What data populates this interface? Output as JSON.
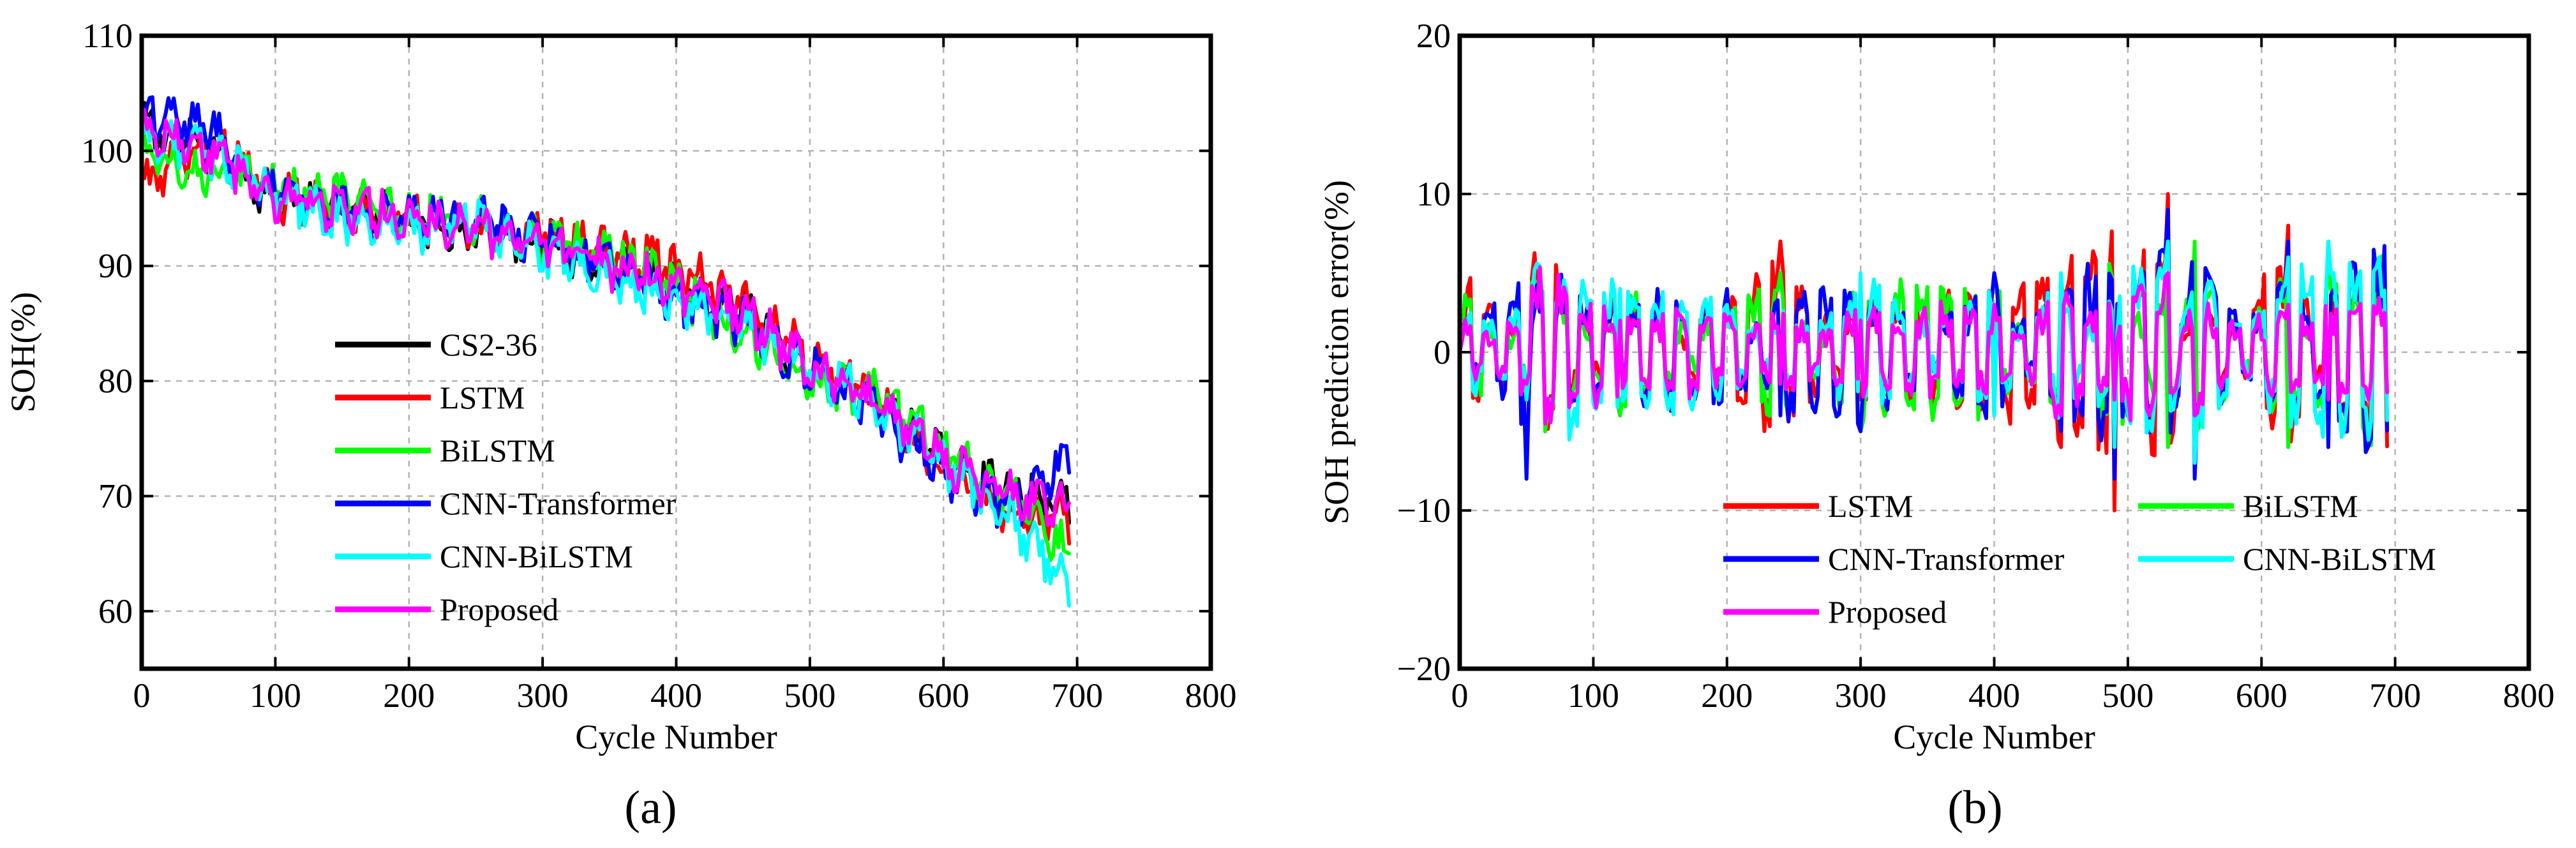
{
  "chart_data": [
    {
      "panel_label": "(a)",
      "type": "line",
      "xlabel": "Cycle Number",
      "ylabel": "SOH(%)",
      "xlim": [
        0,
        800
      ],
      "ylim": [
        55,
        110
      ],
      "xticks": [
        "0",
        "100",
        "200",
        "300",
        "400",
        "500",
        "600",
        "700",
        "800"
      ],
      "yticks": [
        "60",
        "70",
        "80",
        "90",
        "100",
        "110"
      ],
      "grid": true,
      "legend_position": "lower-left",
      "legend": [
        "CS2-36",
        "LSTM",
        "BiLSTM",
        "CNN-Transformer",
        "CNN-BiLSTM",
        "Proposed"
      ],
      "series": [
        {
          "name": "CS2-36",
          "color": "#000000",
          "x": [
            0,
            50,
            100,
            150,
            200,
            250,
            300,
            350,
            400,
            450,
            500,
            550,
            600,
            650,
            695
          ],
          "y": [
            102,
            100,
            96,
            95,
            94,
            93,
            92,
            90,
            88,
            86,
            81,
            78,
            73,
            70,
            69
          ]
        },
        {
          "name": "LSTM",
          "color": "#ff0000",
          "x": [
            0,
            50,
            100,
            150,
            200,
            250,
            300,
            350,
            400,
            450,
            500,
            550,
            600,
            650,
            695
          ],
          "y": [
            97,
            101,
            96,
            95,
            94,
            93,
            93,
            91,
            90,
            87,
            82,
            78,
            72,
            68,
            68
          ]
        },
        {
          "name": "BiLSTM",
          "color": "#00ff00",
          "x": [
            0,
            50,
            100,
            150,
            200,
            250,
            300,
            350,
            400,
            450,
            500,
            550,
            600,
            650,
            695
          ],
          "y": [
            100,
            98,
            97,
            96,
            94,
            94,
            92,
            91,
            88,
            84,
            80,
            79,
            74,
            70,
            65
          ]
        },
        {
          "name": "CNN-Transformer",
          "color": "#0000ff",
          "x": [
            0,
            50,
            100,
            150,
            200,
            250,
            300,
            350,
            400,
            450,
            500,
            550,
            600,
            650,
            695
          ],
          "y": [
            103,
            102,
            96,
            95,
            94,
            94,
            92,
            90,
            87,
            85,
            81,
            77,
            72,
            69,
            73
          ]
        },
        {
          "name": "CNN-BiLSTM",
          "color": "#00ffff",
          "x": [
            0,
            50,
            100,
            150,
            200,
            250,
            300,
            350,
            400,
            450,
            500,
            550,
            600,
            650,
            695
          ],
          "y": [
            101,
            100,
            96,
            94,
            93,
            94,
            91,
            89,
            87,
            85,
            81,
            78,
            73,
            68,
            62
          ]
        },
        {
          "name": "Proposed",
          "color": "#ff00ff",
          "x": [
            0,
            50,
            100,
            150,
            200,
            250,
            300,
            350,
            400,
            450,
            500,
            550,
            600,
            650,
            695
          ],
          "y": [
            102,
            100,
            96,
            95,
            94,
            93,
            92,
            90,
            88,
            86,
            81,
            78,
            73,
            70,
            69
          ]
        }
      ]
    },
    {
      "panel_label": "(b)",
      "type": "line",
      "xlabel": "Cycle Number",
      "ylabel": "SOH prediction error(%)",
      "xlim": [
        0,
        800
      ],
      "ylim": [
        -20,
        20
      ],
      "xticks": [
        "0",
        "100",
        "200",
        "300",
        "400",
        "500",
        "600",
        "700",
        "800"
      ],
      "yticks": [
        "−20",
        "−10",
        "0",
        "10",
        "20"
      ],
      "grid": true,
      "legend_position": "lower-left",
      "legend": [
        "LSTM",
        "BiLSTM",
        "CNN-Transformer",
        "CNN-BiLSTM",
        "Proposed"
      ],
      "series": [
        {
          "name": "LSTM",
          "color": "#ff0000",
          "x": [
            0,
            5,
            50,
            55,
            120,
            200,
            240,
            300,
            400,
            450,
            490,
            495,
            530,
            550,
            620,
            650,
            695
          ],
          "y": [
            0,
            6,
            -3,
            9,
            -4,
            3,
            7,
            -3,
            -4,
            -6,
            -10,
            5,
            10,
            -5,
            8,
            -4,
            -7
          ]
        },
        {
          "name": "BiLSTM",
          "color": "#00ff00",
          "x": [
            0,
            5,
            50,
            55,
            120,
            200,
            240,
            300,
            400,
            450,
            490,
            495,
            530,
            550,
            620,
            650,
            695
          ],
          "y": [
            0,
            4,
            -2,
            8,
            -4,
            2,
            5,
            -5,
            -4,
            5,
            -7,
            6,
            -6,
            7,
            -6,
            6,
            7
          ]
        },
        {
          "name": "CNN-Transformer",
          "color": "#0000ff",
          "x": [
            0,
            5,
            50,
            55,
            120,
            200,
            240,
            300,
            400,
            450,
            490,
            495,
            530,
            550,
            620,
            650,
            695
          ],
          "y": [
            0,
            2,
            -8,
            6,
            3,
            4,
            -4,
            -5,
            5,
            -5,
            -8,
            5,
            9,
            -8,
            7,
            -6,
            -8
          ]
        },
        {
          "name": "CNN-BiLSTM",
          "color": "#00ffff",
          "x": [
            0,
            5,
            50,
            55,
            120,
            200,
            240,
            300,
            400,
            450,
            490,
            495,
            530,
            550,
            620,
            650,
            695
          ],
          "y": [
            0,
            3,
            -3,
            7,
            4,
            3,
            -2,
            5,
            -4,
            5,
            -6,
            6,
            7,
            -7,
            6,
            7,
            7
          ]
        },
        {
          "name": "Proposed",
          "color": "#ff00ff",
          "x": [
            0,
            5,
            50,
            55,
            120,
            200,
            240,
            300,
            400,
            450,
            490,
            495,
            530,
            550,
            620,
            650,
            695
          ],
          "y": [
            0,
            1,
            -2,
            6,
            2,
            2,
            -2,
            2,
            3,
            -4,
            -3,
            4,
            5,
            -4,
            3,
            -3,
            -3
          ]
        }
      ]
    }
  ]
}
